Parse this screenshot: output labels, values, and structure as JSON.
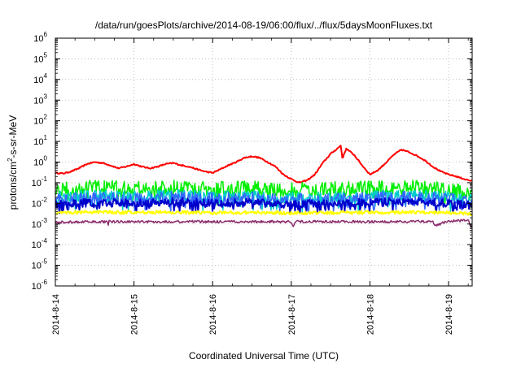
{
  "chart_data": {
    "type": "line",
    "title": "/data/run/goesPlots/archive/2014-08-19/06:00/flux/../flux/5daysMoonFluxes.txt",
    "xlabel": "Coordinated Universal Time (UTC)",
    "ylabel": "protons/cm2-s-sr-MeV",
    "ylabel_parts": {
      "pre": "protons/cm",
      "sup": "2",
      "post": "-s-sr-MeV"
    },
    "yscale": "log",
    "ylim": [
      1e-06,
      1000000.0
    ],
    "xlim": [
      0,
      5.3
    ],
    "grid": true,
    "x_ticks": [
      {
        "x": 0,
        "label": "2014-8-14"
      },
      {
        "x": 1,
        "label": "2014-8-15"
      },
      {
        "x": 2,
        "label": "2014-8-16"
      },
      {
        "x": 3,
        "label": "2014-8-17"
      },
      {
        "x": 4,
        "label": "2014-8-18"
      },
      {
        "x": 5,
        "label": "2014-8-19"
      }
    ],
    "y_ticks": [
      {
        "exp": 6,
        "base": "10",
        "sup": "6"
      },
      {
        "exp": 5,
        "base": "10",
        "sup": "5"
      },
      {
        "exp": 4,
        "base": "10",
        "sup": "4"
      },
      {
        "exp": 3,
        "base": "10",
        "sup": "3"
      },
      {
        "exp": 2,
        "base": "10",
        "sup": "2"
      },
      {
        "exp": 1,
        "base": "10",
        "sup": "1"
      },
      {
        "exp": 0,
        "base": "10",
        "sup": "0"
      },
      {
        "exp": -1,
        "base": "10",
        "sup": "-1"
      },
      {
        "exp": -2,
        "base": "10",
        "sup": "-2"
      },
      {
        "exp": -3,
        "base": "10",
        "sup": "-3"
      },
      {
        "exp": -4,
        "base": "10",
        "sup": "-4"
      },
      {
        "exp": -5,
        "base": "10",
        "sup": "-5"
      },
      {
        "exp": -6,
        "base": "10",
        "sup": "-6"
      }
    ],
    "series": [
      {
        "color": "#ff0000",
        "width": 2,
        "noise": 0.03,
        "x": [
          0,
          0.1,
          0.2,
          0.3,
          0.4,
          0.5,
          0.6,
          0.7,
          0.8,
          0.9,
          1.0,
          1.1,
          1.2,
          1.3,
          1.4,
          1.5,
          1.6,
          1.7,
          1.8,
          1.9,
          2.0,
          2.1,
          2.2,
          2.3,
          2.4,
          2.5,
          2.6,
          2.7,
          2.8,
          2.9,
          3.0,
          3.1,
          3.2,
          3.3,
          3.4,
          3.5,
          3.6,
          3.63,
          3.65,
          3.7,
          3.8,
          3.9,
          4.0,
          4.1,
          4.2,
          4.3,
          4.4,
          4.5,
          4.6,
          4.7,
          4.8,
          4.9,
          5.0,
          5.1,
          5.2,
          5.3
        ],
        "y": [
          0.3,
          0.28,
          0.35,
          0.5,
          0.8,
          1.0,
          0.9,
          0.7,
          0.5,
          0.6,
          0.8,
          0.6,
          0.5,
          0.6,
          0.8,
          0.9,
          0.7,
          0.6,
          0.45,
          0.35,
          0.3,
          0.45,
          0.7,
          1.0,
          1.6,
          1.9,
          1.6,
          1.0,
          0.6,
          0.25,
          0.15,
          0.1,
          0.13,
          0.25,
          0.9,
          2.5,
          5.0,
          6.5,
          1.5,
          4.5,
          2.2,
          0.7,
          0.25,
          0.4,
          0.9,
          2.2,
          4.0,
          3.0,
          2.0,
          1.2,
          0.6,
          0.35,
          0.25,
          0.2,
          0.15,
          0.12
        ]
      },
      {
        "color": "#00ee00",
        "width": 1.5,
        "noise": 0.35,
        "x": [
          0,
          0.5,
          1.0,
          1.5,
          2.0,
          2.5,
          3.0,
          3.5,
          4.0,
          4.5,
          5.0,
          5.3
        ],
        "y": [
          0.05,
          0.06,
          0.055,
          0.06,
          0.05,
          0.055,
          0.045,
          0.05,
          0.055,
          0.06,
          0.05,
          0.03
        ]
      },
      {
        "color": "#00cccc",
        "width": 1.5,
        "noise": 0.3,
        "x": [
          0,
          0.5,
          1.0,
          1.5,
          2.0,
          2.5,
          3.0,
          3.5,
          4.0,
          4.5,
          5.0,
          5.3
        ],
        "y": [
          0.02,
          0.022,
          0.02,
          0.025,
          0.02,
          0.022,
          0.018,
          0.02,
          0.022,
          0.024,
          0.02,
          0.015
        ]
      },
      {
        "color": "#3366ff",
        "width": 1.5,
        "noise": 0.3,
        "x": [
          0,
          0.5,
          1.0,
          1.5,
          2.0,
          2.5,
          3.0,
          3.5,
          4.0,
          4.5,
          5.0,
          5.3
        ],
        "y": [
          0.015,
          0.018,
          0.016,
          0.02,
          0.017,
          0.018,
          0.015,
          0.016,
          0.018,
          0.02,
          0.016,
          0.012
        ]
      },
      {
        "color": "#0000cc",
        "width": 2,
        "noise": 0.2,
        "x": [
          0,
          0.5,
          1.0,
          1.5,
          2.0,
          2.5,
          3.0,
          3.5,
          4.0,
          4.5,
          5.0,
          5.3
        ],
        "y": [
          0.009,
          0.011,
          0.01,
          0.012,
          0.01,
          0.011,
          0.009,
          0.01,
          0.011,
          0.012,
          0.01,
          0.008
        ]
      },
      {
        "color": "#ffff00",
        "width": 2,
        "noise": 0.08,
        "x": [
          0,
          0.5,
          1.0,
          1.5,
          2.0,
          2.5,
          3.0,
          3.5,
          4.0,
          4.5,
          5.0,
          5.3
        ],
        "y": [
          0.0035,
          0.0038,
          0.0036,
          0.0037,
          0.0035,
          0.0036,
          0.0034,
          0.0035,
          0.0036,
          0.0037,
          0.0035,
          0.003
        ]
      },
      {
        "color": "#8b2a6b",
        "width": 1.5,
        "noise": 0.06,
        "x": [
          0,
          0.5,
          0.66,
          0.67,
          0.68,
          1.0,
          1.5,
          2.0,
          2.5,
          3.0,
          3.02,
          3.05,
          3.5,
          3.8,
          4.0,
          4.5,
          4.8,
          4.82,
          5.0,
          5.25,
          5.3
        ],
        "y": [
          0.0012,
          0.0013,
          0.0013,
          0.0007,
          0.0013,
          0.0013,
          0.0013,
          0.0013,
          0.0013,
          0.0013,
          0.0007,
          0.0013,
          0.0013,
          0.0013,
          0.0013,
          0.0013,
          0.0013,
          0.0008,
          0.0014,
          0.0015,
          0.0006
        ]
      }
    ]
  }
}
